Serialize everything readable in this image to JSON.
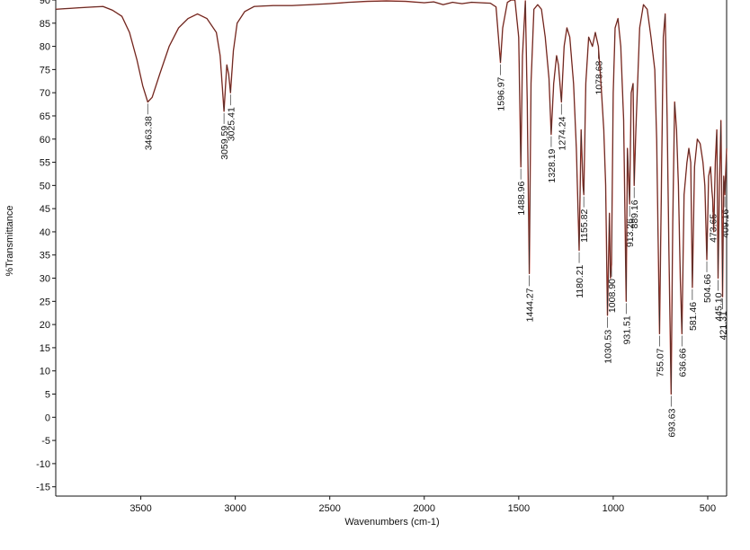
{
  "chart_data": {
    "type": "line",
    "title": "",
    "xlabel": "Wavenumbers (cm-1)",
    "ylabel": "%Transmittance",
    "xlim": [
      3950,
      400
    ],
    "ylim": [
      -17,
      90
    ],
    "x_reversed": true,
    "grid": false,
    "xticks": [
      3500,
      3000,
      2500,
      2000,
      1500,
      1000,
      500
    ],
    "yticks": [
      90,
      85,
      80,
      75,
      70,
      65,
      60,
      55,
      50,
      45,
      40,
      35,
      30,
      25,
      20,
      15,
      10,
      5,
      0,
      -5,
      -10,
      -15
    ],
    "colors": {
      "spectrum": "#c0392b",
      "overlay": "#2b2b2b",
      "axis": "#111111"
    },
    "series": [
      {
        "x": [
          3950,
          3800,
          3700,
          3650,
          3600,
          3560,
          3520,
          3490,
          3463,
          3440,
          3400,
          3350,
          3300,
          3250,
          3200,
          3150,
          3100,
          3080,
          3059.59,
          3045,
          3035,
          3025.41,
          3010,
          2990,
          2950,
          2900,
          2800,
          2700,
          2600,
          2500,
          2400,
          2300,
          2200,
          2100,
          2000,
          1950,
          1900,
          1850,
          1800,
          1750,
          1700,
          1650,
          1620,
          1596.97,
          1585,
          1560,
          1540,
          1520,
          1500,
          1488.96,
          1480,
          1465,
          1455,
          1444.27,
          1435,
          1420,
          1400,
          1380,
          1360,
          1340,
          1328.19,
          1315,
          1300,
          1290,
          1274.24,
          1260,
          1245,
          1230,
          1210,
          1195,
          1180.21,
          1170,
          1160,
          1155.82,
          1145,
          1130,
          1110,
          1095,
          1078.68,
          1065,
          1050,
          1040,
          1030.53,
          1020,
          1015,
          1008.9,
          1000,
          990,
          975,
          960,
          945,
          931.51,
          925,
          913.26,
          905,
          895,
          889.16,
          880,
          860,
          840,
          820,
          800,
          780,
          770,
          755.07,
          745,
          735,
          725,
          715,
          705,
          693.63,
          685,
          675,
          665,
          655,
          645,
          636.66,
          625,
          610,
          600,
          590,
          581.46,
          570,
          555,
          540,
          525,
          515,
          504.66,
          495,
          485,
          478,
          473.65,
          468,
          460,
          452,
          445.1,
          438,
          430,
          425,
          421.31,
          415,
          409.16,
          404,
          400
        ],
        "y": [
          88,
          88.4,
          88.6,
          87.8,
          86.5,
          83,
          77,
          71.5,
          68,
          69,
          74,
          80,
          84,
          86,
          87,
          86,
          83,
          78,
          66,
          76,
          74,
          70,
          79,
          85,
          87.5,
          88.6,
          88.8,
          88.8,
          89,
          89.2,
          89.5,
          89.7,
          89.8,
          89.7,
          89.4,
          89.6,
          89,
          89.5,
          89.2,
          89.5,
          89.4,
          89.3,
          88.5,
          76.5,
          84,
          89.5,
          90,
          90,
          82,
          54,
          78,
          89.8,
          68,
          31,
          72,
          88,
          89,
          88,
          82,
          73,
          61,
          72,
          78,
          76,
          68,
          80,
          84,
          82,
          72,
          58,
          36,
          62,
          50,
          48,
          72,
          82,
          80,
          83,
          80,
          72,
          62,
          50,
          22,
          44,
          30,
          33,
          70,
          84,
          86,
          80,
          64,
          25,
          58,
          46,
          70,
          72,
          50,
          62,
          84,
          89,
          88,
          82,
          75,
          60,
          18,
          50,
          82,
          87,
          65,
          35,
          5,
          42,
          68,
          62,
          50,
          30,
          18,
          48,
          55,
          58,
          55,
          28,
          54,
          60,
          59,
          55,
          50,
          34,
          52,
          54,
          49,
          47,
          40,
          55,
          62,
          30,
          50,
          64,
          45,
          26,
          52,
          48,
          54,
          58
        ]
      }
    ],
    "annotations": [
      {
        "x": 3463.38,
        "label": "3463.38"
      },
      {
        "x": 3059.59,
        "label": "3059.59"
      },
      {
        "x": 3025.41,
        "label": "3025.41"
      },
      {
        "x": 1596.97,
        "label": "1596.97"
      },
      {
        "x": 1488.96,
        "label": "1488.96"
      },
      {
        "x": 1444.27,
        "label": "1444.27"
      },
      {
        "x": 1328.19,
        "label": "1328.19"
      },
      {
        "x": 1274.24,
        "label": "1274.24"
      },
      {
        "x": 1180.21,
        "label": "1180.21"
      },
      {
        "x": 1155.82,
        "label": "1155.82"
      },
      {
        "x": 1078.68,
        "label": "1078.68"
      },
      {
        "x": 1030.53,
        "label": "1030.53"
      },
      {
        "x": 1008.9,
        "label": "1008.90"
      },
      {
        "x": 931.51,
        "label": "931.51"
      },
      {
        "x": 913.26,
        "label": "913.26"
      },
      {
        "x": 889.16,
        "label": "889.16"
      },
      {
        "x": 755.07,
        "label": "755.07"
      },
      {
        "x": 693.63,
        "label": "693.63"
      },
      {
        "x": 636.66,
        "label": "636.66"
      },
      {
        "x": 581.46,
        "label": "581.46"
      },
      {
        "x": 504.66,
        "label": "504.66"
      },
      {
        "x": 473.65,
        "label": "473.65"
      },
      {
        "x": 445.1,
        "label": "445.10"
      },
      {
        "x": 421.31,
        "label": "421.31"
      },
      {
        "x": 409.16,
        "label": "409.16"
      }
    ]
  }
}
